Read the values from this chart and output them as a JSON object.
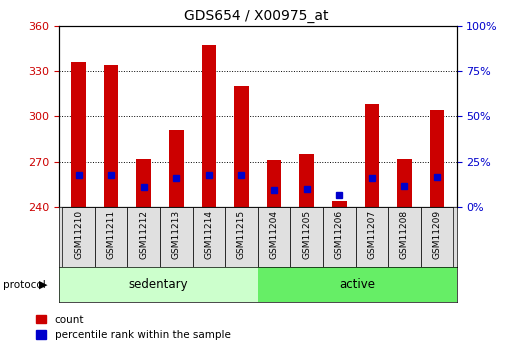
{
  "title": "GDS654 / X00975_at",
  "samples": [
    "GSM11210",
    "GSM11211",
    "GSM11212",
    "GSM11213",
    "GSM11214",
    "GSM11215",
    "GSM11204",
    "GSM11205",
    "GSM11206",
    "GSM11207",
    "GSM11208",
    "GSM11209"
  ],
  "groups": [
    "sedentary",
    "sedentary",
    "sedentary",
    "sedentary",
    "sedentary",
    "sedentary",
    "active",
    "active",
    "active",
    "active",
    "active",
    "active"
  ],
  "count_values": [
    336,
    334,
    272,
    291,
    347,
    320,
    271,
    275,
    244,
    308,
    272,
    304
  ],
  "percentile_values": [
    261,
    261,
    253,
    259,
    261,
    261,
    251,
    252,
    248,
    259,
    254,
    260
  ],
  "y_min": 240,
  "y_max": 360,
  "y_ticks": [
    240,
    270,
    300,
    330,
    360
  ],
  "y2_ticks": [
    0,
    25,
    50,
    75,
    100
  ],
  "bar_color": "#cc0000",
  "marker_color": "#0000cc",
  "grid_color": "#000000",
  "sedentary_color": "#ccffcc",
  "active_color": "#66ee66",
  "tick_label_color_left": "#cc0000",
  "tick_label_color_right": "#0000cc",
  "bar_width": 0.45,
  "marker_size": 5,
  "x_label_fontsize": 6.5,
  "title_fontsize": 10,
  "n_sedentary": 6,
  "n_active": 6
}
